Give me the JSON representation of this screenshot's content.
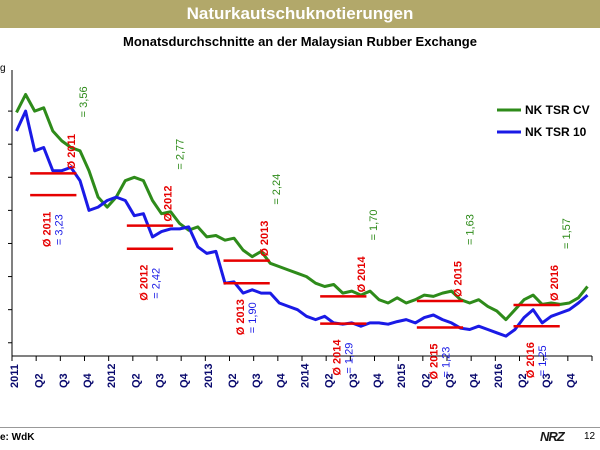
{
  "header": {
    "banner": "Naturkautschuknotierungen",
    "subtitle": "Monatsdurchschnitte an der Malaysian Rubber Exchange",
    "unit_fragment": "g",
    "source": "e: WdK",
    "logo": "NRZ",
    "page_number": "12"
  },
  "colors": {
    "banner": "#b2a86a",
    "cv": "#2e8b1a",
    "tsr10": "#1a1ae6",
    "avg_bar": "#e60000",
    "avg_label_red": "#e60000",
    "cv_label": "#2e8b1a",
    "tsr_label": "#1a1ae6"
  },
  "chart_data": {
    "type": "line",
    "title": "Monatsdurchschnitte an der Malaysian Rubber Exchange",
    "x_labels": [
      "2011",
      "Q2",
      "Q3",
      "Q4",
      "2012",
      "Q2",
      "Q3",
      "Q4",
      "2013",
      "Q2",
      "Q3",
      "Q4",
      "2014",
      "Q2",
      "Q3",
      "Q4",
      "2015",
      "Q2",
      "Q3",
      "Q4",
      "2016",
      "Q2",
      "Q3",
      "Q4"
    ],
    "ylim": [
      0.8,
      5.0
    ],
    "grid": false,
    "legend_position": "top-right",
    "series": [
      {
        "name": "NK TSR CV",
        "values": [
          4.48,
          4.75,
          4.5,
          4.55,
          4.2,
          4.05,
          3.95,
          3.9,
          3.6,
          3.2,
          3.05,
          3.2,
          3.45,
          3.5,
          3.45,
          3.15,
          2.95,
          2.98,
          2.8,
          2.7,
          2.75,
          2.6,
          2.62,
          2.55,
          2.58,
          2.4,
          2.3,
          2.38,
          2.2,
          2.15,
          2.1,
          2.05,
          2.0,
          1.9,
          1.85,
          1.88,
          1.75,
          1.78,
          1.72,
          1.78,
          1.65,
          1.6,
          1.68,
          1.6,
          1.65,
          1.72,
          1.7,
          1.75,
          1.78,
          1.65,
          1.6,
          1.65,
          1.55,
          1.48,
          1.35,
          1.5,
          1.65,
          1.72,
          1.58,
          1.6,
          1.58,
          1.6,
          1.68,
          1.85
        ]
      },
      {
        "name": "NK TSR 10",
        "values": [
          4.2,
          4.5,
          3.9,
          3.95,
          3.6,
          3.6,
          3.65,
          3.45,
          3.0,
          3.05,
          3.15,
          3.2,
          3.15,
          2.92,
          2.95,
          2.6,
          2.68,
          2.72,
          2.72,
          2.75,
          2.45,
          2.35,
          2.38,
          1.9,
          1.92,
          1.75,
          1.8,
          1.75,
          1.75,
          1.6,
          1.55,
          1.5,
          1.4,
          1.35,
          1.4,
          1.3,
          1.28,
          1.3,
          1.25,
          1.3,
          1.3,
          1.28,
          1.32,
          1.35,
          1.3,
          1.38,
          1.42,
          1.35,
          1.3,
          1.22,
          1.2,
          1.25,
          1.2,
          1.15,
          1.1,
          1.2,
          1.38,
          1.5,
          1.3,
          1.4,
          1.45,
          1.5,
          1.6,
          1.72
        ]
      }
    ],
    "averages": [
      {
        "label": "Ø 2011",
        "value_label": "= 3,56",
        "value": 3.56,
        "series": "NK TSR CV"
      },
      {
        "label": "Ø 2011",
        "value_label": "= 3,23",
        "value": 3.23,
        "series": "NK TSR 10"
      },
      {
        "label": "Ø 2012",
        "value_label": "= 2,77",
        "value": 2.77,
        "series": "NK TSR CV"
      },
      {
        "label": "Ø 2012",
        "value_label": "= 2,42",
        "value": 2.42,
        "series": "NK TSR 10"
      },
      {
        "label": "Ø 2013",
        "value_label": "= 2,24",
        "value": 2.24,
        "series": "NK TSR CV"
      },
      {
        "label": "Ø 2013",
        "value_label": "= 1,90",
        "value": 1.9,
        "series": "NK TSR 10"
      },
      {
        "label": "Ø 2014",
        "value_label": "= 1,70",
        "value": 1.7,
        "series": "NK TSR CV"
      },
      {
        "label": "Ø 2014",
        "value_label": "= 1,29",
        "value": 1.29,
        "series": "NK TSR 10"
      },
      {
        "label": "Ø 2015",
        "value_label": "= 1,63",
        "value": 1.63,
        "series": "NK TSR CV"
      },
      {
        "label": "Ø 2015",
        "value_label": "= 1,23",
        "value": 1.23,
        "series": "NK TSR 10"
      },
      {
        "label": "Ø 2016",
        "value_label": "= 1,57",
        "value": 1.57,
        "series": "NK TSR CV"
      },
      {
        "label": "Ø 2016",
        "value_label": "= 1,25",
        "value": 1.25,
        "series": "NK TSR 10"
      }
    ]
  }
}
